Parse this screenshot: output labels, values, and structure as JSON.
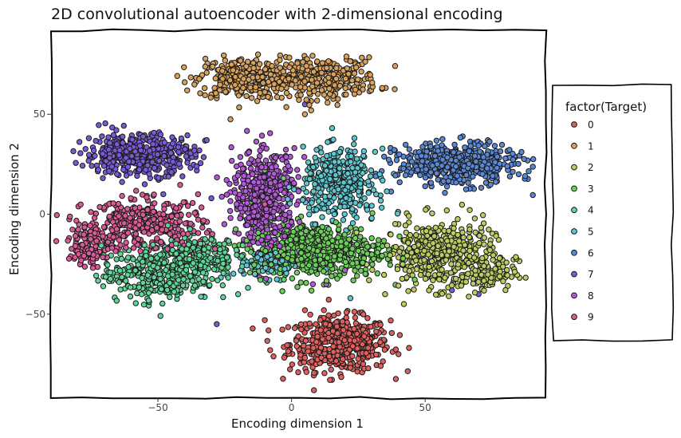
{
  "chart_data": {
    "type": "scatter",
    "title": "2D convolutional autoencoder with 2-dimensional encoding",
    "xlabel": "Encoding dimension 1",
    "ylabel": "Encoding dimension 2",
    "xlim": [
      -90,
      95
    ],
    "ylim": [
      -92,
      92
    ],
    "xticks": [
      -50,
      0,
      50
    ],
    "yticks": [
      -50,
      0,
      50
    ],
    "xtick_labels": [
      "−50",
      "0",
      "50"
    ],
    "ytick_labels": [
      "−50",
      "0",
      "50"
    ],
    "grid": false,
    "legend": {
      "title": "factor(Target)",
      "placement": "right",
      "entries": [
        "0",
        "1",
        "2",
        "3",
        "4",
        "5",
        "6",
        "7",
        "8",
        "9"
      ]
    },
    "colors": [
      "#e0605e",
      "#d9a25a",
      "#bccd5f",
      "#6bd05a",
      "#5fd598",
      "#5cc8cf",
      "#5a88d6",
      "#7b5ad8",
      "#b45ad9",
      "#d95a96"
    ],
    "series": [
      {
        "name": "0",
        "clusters": [
          {
            "cx": 18,
            "cy": -65,
            "sx": 11,
            "sy": 8,
            "n": 520
          }
        ],
        "outliers": [
          [
            40,
            -70
          ],
          [
            -10,
            -53
          ],
          [
            -8,
            -68
          ],
          [
            5,
            -48
          ]
        ]
      },
      {
        "name": "1",
        "clusters": [
          {
            "cx": -18,
            "cy": 68,
            "sx": 10,
            "sy": 6,
            "n": 300
          },
          {
            "cx": 12,
            "cy": 68,
            "sx": 12,
            "sy": 6,
            "n": 300
          }
        ],
        "outliers": [
          [
            5,
            50
          ],
          [
            -28,
            58
          ],
          [
            -40,
            66
          ]
        ]
      },
      {
        "name": "2",
        "clusters": [
          {
            "cx": 55,
            "cy": -20,
            "sx": 12,
            "sy": 10,
            "n": 420
          },
          {
            "cx": 72,
            "cy": -30,
            "sx": 7,
            "sy": 5,
            "n": 100
          }
        ],
        "outliers": [
          [
            35,
            -40
          ],
          [
            27,
            -20
          ],
          [
            40,
            -5
          ]
        ]
      },
      {
        "name": "3",
        "clusters": [
          {
            "cx": 10,
            "cy": -18,
            "sx": 15,
            "sy": 8,
            "n": 550
          }
        ],
        "outliers": [
          [
            -10,
            -25
          ],
          [
            -3,
            18
          ],
          [
            30,
            -12
          ],
          [
            -10,
            22
          ]
        ]
      },
      {
        "name": "4",
        "clusters": [
          {
            "cx": -50,
            "cy": -30,
            "sx": 12,
            "sy": 8,
            "n": 330
          },
          {
            "cx": -35,
            "cy": -20,
            "sx": 8,
            "sy": 6,
            "n": 180
          }
        ],
        "outliers": [
          [
            -20,
            -40
          ],
          [
            -63,
            -28
          ]
        ]
      },
      {
        "name": "5",
        "clusters": [
          {
            "cx": 18,
            "cy": 15,
            "sx": 8,
            "sy": 10,
            "n": 380
          },
          {
            "cx": -8,
            "cy": -25,
            "sx": 9,
            "sy": 4,
            "n": 100
          }
        ],
        "outliers": [
          [
            33,
            20
          ],
          [
            30,
            -2
          ],
          [
            22,
            -42
          ]
        ]
      },
      {
        "name": "6",
        "clusters": [
          {
            "cx": 62,
            "cy": 25,
            "sx": 13,
            "sy": 6,
            "n": 520
          }
        ],
        "outliers": [
          [
            85,
            20
          ],
          [
            42,
            25
          ],
          [
            50,
            14
          ]
        ]
      },
      {
        "name": "7",
        "clusters": [
          {
            "cx": -57,
            "cy": 30,
            "sx": 12,
            "sy": 6,
            "n": 470
          }
        ],
        "outliers": [
          [
            -30,
            8
          ],
          [
            -48,
            10
          ],
          [
            -28,
            -55
          ],
          [
            5,
            55
          ],
          [
            70,
            -40
          ],
          [
            60,
            -38
          ]
        ]
      },
      {
        "name": "8",
        "clusters": [
          {
            "cx": -10,
            "cy": 8,
            "sx": 7,
            "sy": 14,
            "n": 520
          }
        ],
        "outliers": [
          [
            8,
            -35
          ],
          [
            -15,
            -18
          ],
          [
            13,
            -35
          ],
          [
            20,
            -28
          ]
        ]
      },
      {
        "name": "9",
        "clusters": [
          {
            "cx": -55,
            "cy": -5,
            "sx": 13,
            "sy": 7,
            "n": 340
          },
          {
            "cx": -75,
            "cy": -15,
            "sx": 5,
            "sy": 7,
            "n": 120
          }
        ],
        "outliers": [
          [
            -35,
            10
          ],
          [
            -10,
            5
          ],
          [
            -3,
            -10
          ]
        ]
      }
    ]
  }
}
